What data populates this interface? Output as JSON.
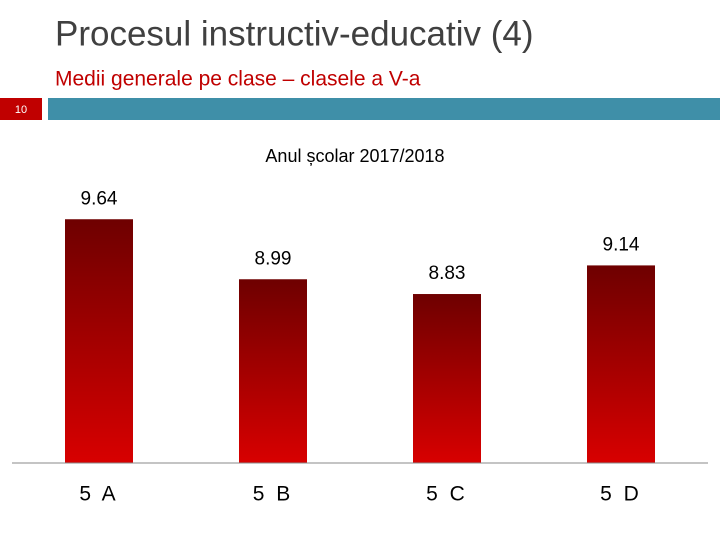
{
  "header": {
    "title": "Procesul instructiv-educativ (4)",
    "subtitle": "Medii generale pe clase – clasele a V-a",
    "slide_number": "10"
  },
  "chart_data": {
    "type": "bar",
    "title": "Anul școlar 2017/2018",
    "categories": [
      "5 A",
      "5 B",
      "5 C",
      "5 D"
    ],
    "values": [
      9.64,
      8.99,
      8.83,
      9.14
    ],
    "color": "#c00000",
    "ylim": [
      7,
      10
    ]
  }
}
